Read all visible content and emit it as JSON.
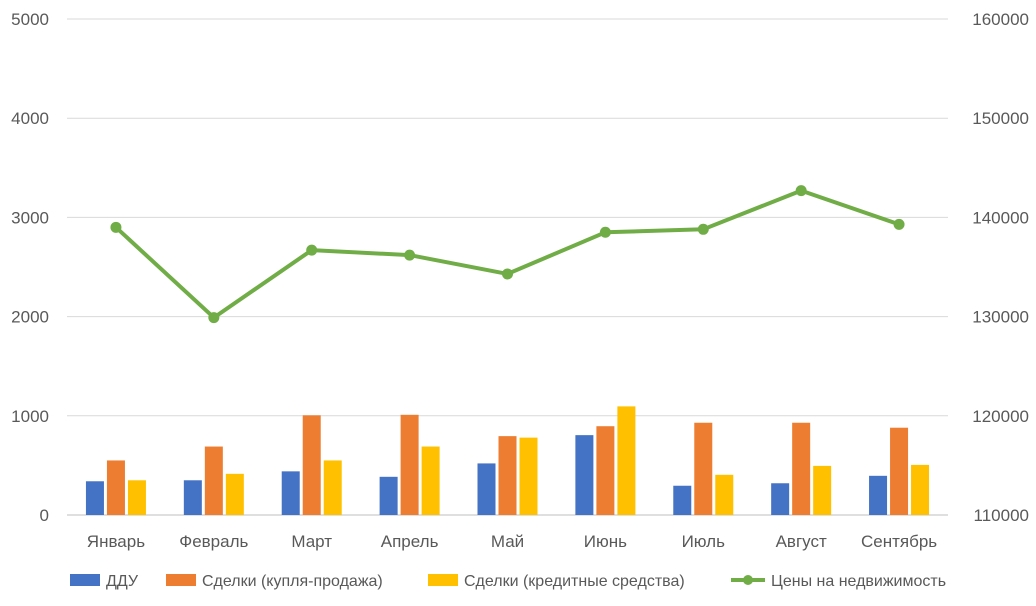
{
  "chart_data": {
    "type": "bar",
    "categories": [
      "Январь",
      "Февраль",
      "Март",
      "Апрель",
      "Май",
      "Июнь",
      "Июль",
      "Август",
      "Сентябрь"
    ],
    "series": [
      {
        "name": "ДДУ",
        "type": "bar",
        "axis": "left",
        "color": "#4472C4",
        "values": [
          340,
          350,
          440,
          385,
          520,
          805,
          295,
          320,
          395
        ]
      },
      {
        "name": "Сделки (купля-продажа)",
        "type": "bar",
        "axis": "left",
        "color": "#ED7D31",
        "values": [
          550,
          690,
          1005,
          1010,
          795,
          895,
          930,
          930,
          880
        ]
      },
      {
        "name": "Сделки (кредитные средства)",
        "type": "bar",
        "axis": "left",
        "color": "#FFC000",
        "values": [
          350,
          415,
          550,
          690,
          780,
          1095,
          405,
          495,
          505
        ]
      },
      {
        "name": "Цены на недвижимость",
        "type": "line",
        "axis": "right",
        "color": "#70AD47",
        "values": [
          139000,
          129900,
          136700,
          136200,
          134300,
          138500,
          138800,
          142700,
          139300
        ]
      }
    ],
    "y_left": {
      "min": 0,
      "max": 5000,
      "ticks": [
        0,
        1000,
        2000,
        3000,
        4000,
        5000
      ]
    },
    "y_right": {
      "min": 110000,
      "max": 160000,
      "ticks": [
        110000,
        120000,
        130000,
        140000,
        150000,
        160000
      ]
    },
    "grid": true,
    "legend_position": "bottom"
  }
}
